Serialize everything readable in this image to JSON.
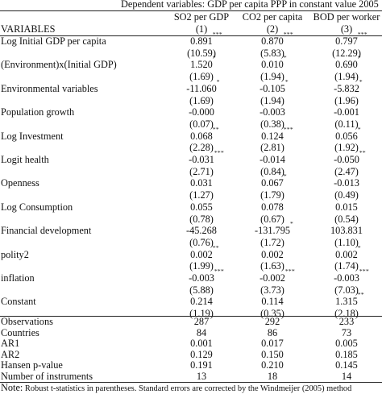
{
  "header": {
    "dependent": "Dependent variables: GDP per capita PPP in constant value 2005",
    "variables_label": "VARIABLES",
    "columns": [
      {
        "name": "SO2 per GDP",
        "num": "(1)"
      },
      {
        "name": "CO2 per capita",
        "num": "(2)"
      },
      {
        "name": "BOD per worker",
        "num": "(3)"
      }
    ]
  },
  "variables": [
    {
      "label": "Log Initial GDP per capita",
      "coef": [
        {
          "v": "0.891",
          "s": "***"
        },
        {
          "v": "0.870",
          "s": "***"
        },
        {
          "v": "0.797",
          "s": "***"
        }
      ],
      "t": [
        "(10.59)",
        "(5.83)",
        "(12.29)"
      ]
    },
    {
      "label": "(Environment)x(Initial GDP)",
      "coef": [
        {
          "v": "1.520",
          "s": "*"
        },
        {
          "v": "0.010",
          "s": "*"
        },
        {
          "v": "0.690",
          "s": "*"
        }
      ],
      "t": [
        "(1.69)",
        "(1.94)",
        "(1.94)"
      ]
    },
    {
      "label": "Environmental variables",
      "coef": [
        {
          "v": "-11.060",
          "s": "*"
        },
        {
          "v": "-0.105",
          "s": "*"
        },
        {
          "v": "-5.832",
          "s": "*"
        }
      ],
      "t": [
        "(1.69)",
        "(1.94)",
        "(1.96)"
      ]
    },
    {
      "label": "Population growth",
      "coef": [
        {
          "v": "-0.000",
          "s": ""
        },
        {
          "v": "-0.003",
          "s": ""
        },
        {
          "v": "-0.001",
          "s": ""
        }
      ],
      "t": [
        "(0.07)",
        "(0.38)",
        "(0.11)"
      ]
    },
    {
      "label": "Log Investment",
      "coef": [
        {
          "v": "0.068",
          "s": "**"
        },
        {
          "v": "0.124",
          "s": "***"
        },
        {
          "v": "0.056",
          "s": "*"
        }
      ],
      "t": [
        "(2.28)",
        "(2.81)",
        "(1.92)"
      ]
    },
    {
      "label": "Logit health",
      "coef": [
        {
          "v": "-0.031",
          "s": "***"
        },
        {
          "v": "-0.014",
          "s": ""
        },
        {
          "v": "-0.050",
          "s": "**"
        }
      ],
      "t": [
        "(2.71)",
        "(0.84)",
        "(2.47)"
      ]
    },
    {
      "label": "Openness",
      "coef": [
        {
          "v": "0.031",
          "s": ""
        },
        {
          "v": "0.067",
          "s": "*"
        },
        {
          "v": "-0.013",
          "s": ""
        }
      ],
      "t": [
        "(1.27)",
        "(1.79)",
        "(0.49)"
      ]
    },
    {
      "label": "Log Consumption",
      "coef": [
        {
          "v": "0.055",
          "s": ""
        },
        {
          "v": "0.078",
          "s": ""
        },
        {
          "v": "0.015",
          "s": ""
        }
      ],
      "t": [
        "(0.78)",
        "(0.67)",
        "(0.54)"
      ]
    },
    {
      "label": "Financial development",
      "coef": [
        {
          "v": "-45.268",
          "s": ""
        },
        {
          "v": "-131.795",
          "s": "*"
        },
        {
          "v": "103.831",
          "s": ""
        }
      ],
      "t": [
        "(0.76)",
        "(1.72)",
        "(1.10)"
      ]
    },
    {
      "label": "polity2",
      "coef": [
        {
          "v": "0.002",
          "s": "**"
        },
        {
          "v": "0.002",
          "s": ""
        },
        {
          "v": "0.002",
          "s": "*"
        }
      ],
      "t": [
        "(1.99)",
        "(1.63)",
        "(1.74)"
      ]
    },
    {
      "label": "inflation",
      "coef": [
        {
          "v": "-0.003",
          "s": "***"
        },
        {
          "v": "-0.002",
          "s": "***"
        },
        {
          "v": "-0.003",
          "s": "***"
        }
      ],
      "t": [
        "(5.88)",
        "(3.73)",
        "(7.03)"
      ]
    },
    {
      "label": "Constant",
      "coef": [
        {
          "v": "0.214",
          "s": ""
        },
        {
          "v": "0.114",
          "s": ""
        },
        {
          "v": "1.315",
          "s": "**"
        }
      ],
      "t": [
        "(1.19)",
        "(0.35)",
        "(2.18)"
      ]
    }
  ],
  "stats": [
    {
      "label": "Observations",
      "values": [
        "287",
        "292",
        "233"
      ]
    },
    {
      "label": "Countries",
      "values": [
        "84",
        "86",
        "73"
      ]
    },
    {
      "label": "AR1",
      "values": [
        "0.001",
        "0.017",
        "0.005"
      ]
    },
    {
      "label": "AR2",
      "values": [
        "0.129",
        "0.150",
        "0.185"
      ]
    },
    {
      "label": "Hansen p-value",
      "values": [
        "0.191",
        "0.210",
        "0.145"
      ]
    },
    {
      "label": "Number of instruments",
      "values": [
        "13",
        "18",
        "14"
      ]
    }
  ],
  "note": {
    "prefix": "Note:",
    "text": " Robust t-statistics in parentheses. Standard errors are corrected by the Windmeijer (2005) method"
  }
}
